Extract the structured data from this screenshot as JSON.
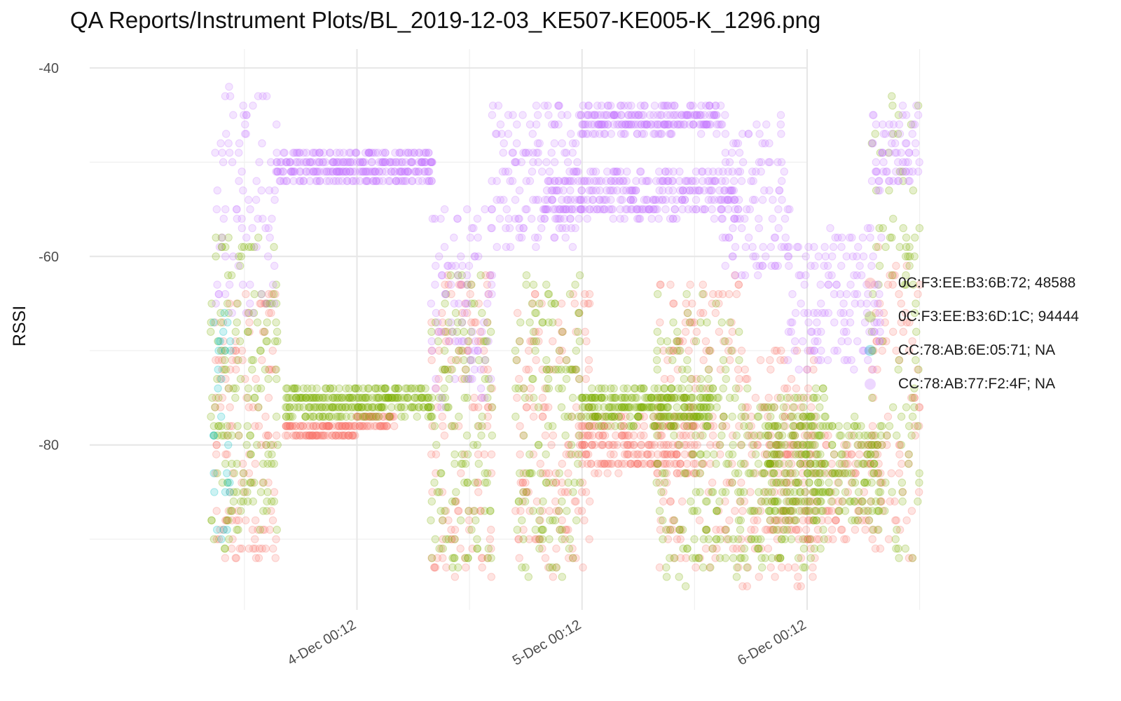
{
  "chart_data": {
    "type": "scatter",
    "title": "QA Reports/Instrument Plots/BL_2019-12-03_KE507-KE005-K_1296.png",
    "xlabel": "",
    "ylabel": "RSSI",
    "x_unit": "hours since 3-Dec 00:12",
    "xlim": [
      -4.5,
      72
    ],
    "ylim": [
      -97.5,
      -38
    ],
    "x_ticks": [
      {
        "value": 24,
        "label": "4-Dec 00:12"
      },
      {
        "value": 48,
        "label": "5-Dec 00:12"
      },
      {
        "value": 72,
        "label": "6-Dec 00:12"
      }
    ],
    "x_minor_ticks": [
      12,
      36,
      60,
      84
    ],
    "y_ticks": [
      {
        "value": -40,
        "label": "-40"
      },
      {
        "value": -60,
        "label": "-60"
      },
      {
        "value": -80,
        "label": "-80"
      }
    ],
    "y_minor_ticks": [
      -50,
      -70,
      -90
    ],
    "grid": true,
    "legend_position": "right",
    "point_alpha": 0.2,
    "series": [
      {
        "name": "0C:F3:EE:B3:6B:72; 48588",
        "color": "#F8766D",
        "segments": [
          {
            "x": [
              9.0,
              15.5
            ],
            "y": [
              -93,
              -63
            ],
            "density": 7
          },
          {
            "x": [
              16.5,
              24.0
            ],
            "y": [
              -79,
              -78
            ],
            "density": 5
          },
          {
            "x": [
              24.0,
              28.0
            ],
            "y": [
              -78,
              -77
            ],
            "density": 4
          },
          {
            "x": [
              32.0,
              38.5
            ],
            "y": [
              -94,
              -62
            ],
            "density": 7
          },
          {
            "x": [
              41.0,
              49.0
            ],
            "y": [
              -94,
              -64
            ],
            "density": 7
          },
          {
            "x": [
              48.0,
              60.0
            ],
            "y": [
              -83,
              -77
            ],
            "density": 6
          },
          {
            "x": [
              56.0,
              65.0
            ],
            "y": [
              -93,
              -62
            ],
            "density": 6
          },
          {
            "x": [
              65.0,
              73.0
            ],
            "y": [
              -95,
              -70
            ],
            "density": 6
          },
          {
            "x": [
              68.0,
              80.0
            ],
            "y": [
              -90,
              -79
            ],
            "density": 5
          },
          {
            "x": [
              79.0,
              84.0
            ],
            "y": [
              -92,
              -58
            ],
            "density": 5
          }
        ]
      },
      {
        "name": "0C:F3:EE:B3:6D:1C; 94444",
        "color": "#7CAE00",
        "segments": [
          {
            "x": [
              8.5,
              15.5
            ],
            "y": [
              -92,
              -58
            ],
            "density": 8
          },
          {
            "x": [
              16.5,
              32.0
            ],
            "y": [
              -77,
              -74
            ],
            "density": 6
          },
          {
            "x": [
              32.0,
              38.5
            ],
            "y": [
              -93,
              -62
            ],
            "density": 8
          },
          {
            "x": [
              41.0,
              48.0
            ],
            "y": [
              -94,
              -62
            ],
            "density": 8
          },
          {
            "x": [
              48.0,
              62.0
            ],
            "y": [
              -78,
              -74
            ],
            "density": 6
          },
          {
            "x": [
              56.0,
              65.0
            ],
            "y": [
              -95,
              -64
            ],
            "density": 7
          },
          {
            "x": [
              65.0,
              74.0
            ],
            "y": [
              -93,
              -74
            ],
            "density": 7
          },
          {
            "x": [
              68.0,
              80.0
            ],
            "y": [
              -88,
              -77
            ],
            "density": 6
          },
          {
            "x": [
              79.0,
              84.0
            ],
            "y": [
              -92,
              -43
            ],
            "density": 6
          }
        ]
      },
      {
        "name": "CC:78:AB:6E:05:71; NA",
        "color": "#00BFC4",
        "segments": [
          {
            "x": [
              8.8,
              10.8
            ],
            "y": [
              -90,
              -66
            ],
            "density": 4
          }
        ]
      },
      {
        "name": "CC:78:AB:77:F2:4F; NA",
        "color": "#C77CFF",
        "segments": [
          {
            "x": [
              9.0,
              15.5
            ],
            "y": [
              -66,
              -42
            ],
            "density": 5
          },
          {
            "x": [
              15.5,
              32.0
            ],
            "y": [
              -52,
              -49
            ],
            "density": 6
          },
          {
            "x": [
              32.0,
              38.5
            ],
            "y": [
              -76,
              -55
            ],
            "density": 5
          },
          {
            "x": [
              38.5,
              48.0
            ],
            "y": [
              -59,
              -44
            ],
            "density": 5
          },
          {
            "x": [
              48.0,
              63.0
            ],
            "y": [
              -47,
              -44
            ],
            "density": 5
          },
          {
            "x": [
              44.0,
              65.0
            ],
            "y": [
              -56,
              -51
            ],
            "density": 5
          },
          {
            "x": [
              63.0,
              70.0
            ],
            "y": [
              -62,
              -45
            ],
            "density": 5
          },
          {
            "x": [
              70.0,
              80.0
            ],
            "y": [
              -72,
              -57
            ],
            "density": 5
          },
          {
            "x": [
              79.0,
              84.0
            ],
            "y": [
              -53,
              -44
            ],
            "density": 5
          }
        ]
      }
    ]
  }
}
